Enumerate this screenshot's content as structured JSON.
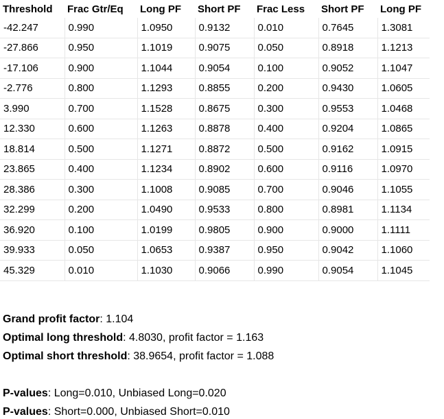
{
  "table": {
    "headers": [
      "Threshold",
      "Frac Gtr/Eq",
      "Long PF",
      "Short PF",
      "Frac Less",
      "Short PF",
      "Long PF"
    ],
    "rows": [
      [
        "-42.247",
        "0.990",
        "1.0950",
        "0.9132",
        "0.010",
        "0.7645",
        "1.3081"
      ],
      [
        "-27.866",
        "0.950",
        "1.1019",
        "0.9075",
        "0.050",
        "0.8918",
        "1.1213"
      ],
      [
        "-17.106",
        "0.900",
        "1.1044",
        "0.9054",
        "0.100",
        "0.9052",
        "1.1047"
      ],
      [
        "-2.776",
        "0.800",
        "1.1293",
        "0.8855",
        "0.200",
        "0.9430",
        "1.0605"
      ],
      [
        "3.990",
        "0.700",
        "1.1528",
        "0.8675",
        "0.300",
        "0.9553",
        "1.0468"
      ],
      [
        "12.330",
        "0.600",
        "1.1263",
        "0.8878",
        "0.400",
        "0.9204",
        "1.0865"
      ],
      [
        "18.814",
        "0.500",
        "1.1271",
        "0.8872",
        "0.500",
        "0.9162",
        "1.0915"
      ],
      [
        "23.865",
        "0.400",
        "1.1234",
        "0.8902",
        "0.600",
        "0.9116",
        "1.0970"
      ],
      [
        "28.386",
        "0.300",
        "1.1008",
        "0.9085",
        "0.700",
        "0.9046",
        "1.1055"
      ],
      [
        "32.299",
        "0.200",
        "1.0490",
        "0.9533",
        "0.800",
        "0.8981",
        "1.1134"
      ],
      [
        "36.920",
        "0.100",
        "1.0199",
        "0.9805",
        "0.900",
        "0.9000",
        "1.1111"
      ],
      [
        "39.933",
        "0.050",
        "1.0653",
        "0.9387",
        "0.950",
        "0.9042",
        "1.1060"
      ],
      [
        "45.329",
        "0.010",
        "1.1030",
        "0.9066",
        "0.990",
        "0.9054",
        "1.1045"
      ]
    ]
  },
  "summary": {
    "grand_label": "Grand profit factor",
    "grand_value": ": 1.104",
    "long_label": "Optimal long threshold",
    "long_value": ": 4.8030, profit factor = 1.163",
    "short_label": "Optimal short threshold",
    "short_value": ": 38.9654, profit factor = 1.088",
    "pvalues_label_1": "P-values",
    "pvalues_value_1": ": Long=0.010, Unbiased Long=0.020",
    "pvalues_label_2": "P-values",
    "pvalues_value_2": ": Short=0.000, Unbiased Short=0.010"
  }
}
